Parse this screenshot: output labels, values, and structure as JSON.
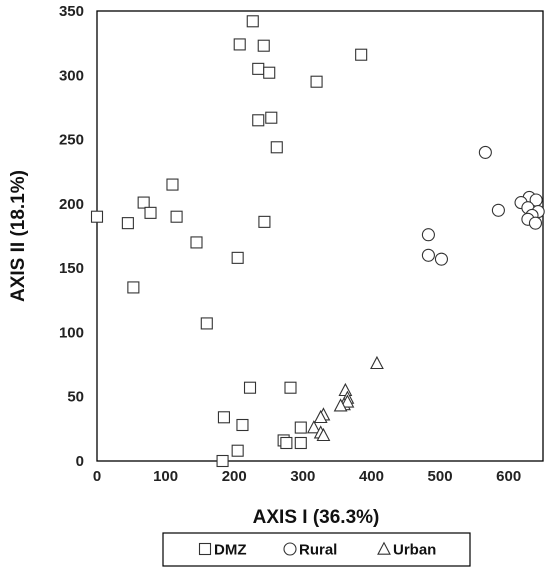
{
  "chart_data": {
    "type": "scatter",
    "xlabel": "AXIS I (36.3%)",
    "ylabel": "AXIS II (18.1%)",
    "xlim": [
      0,
      650
    ],
    "ylim": [
      0,
      350
    ],
    "xticks": [
      0,
      100,
      200,
      300,
      400,
      500,
      600
    ],
    "yticks": [
      0,
      50,
      100,
      150,
      200,
      250,
      300,
      350
    ],
    "grid": false,
    "legend_position": "bottom",
    "series": [
      {
        "name": "DMZ",
        "marker": "square",
        "points": [
          [
            227,
            342
          ],
          [
            208,
            324
          ],
          [
            243,
            323
          ],
          [
            385,
            316
          ],
          [
            235,
            305
          ],
          [
            251,
            302
          ],
          [
            320,
            295
          ],
          [
            254,
            267
          ],
          [
            235,
            265
          ],
          [
            262,
            244
          ],
          [
            110,
            215
          ],
          [
            68,
            201
          ],
          [
            0,
            190
          ],
          [
            78,
            193
          ],
          [
            116,
            190
          ],
          [
            45,
            185
          ],
          [
            244,
            186
          ],
          [
            145,
            170
          ],
          [
            205,
            158
          ],
          [
            53,
            135
          ],
          [
            160,
            107
          ],
          [
            223,
            57
          ],
          [
            282,
            57
          ],
          [
            185,
            34
          ],
          [
            297,
            26
          ],
          [
            212,
            28
          ],
          [
            205,
            8
          ],
          [
            272,
            16
          ],
          [
            297,
            14
          ],
          [
            276,
            14
          ],
          [
            183,
            0
          ]
        ]
      },
      {
        "name": "Rural",
        "marker": "circle",
        "points": [
          [
            566,
            240
          ],
          [
            630,
            205
          ],
          [
            640,
            203
          ],
          [
            618,
            201
          ],
          [
            628,
            197
          ],
          [
            643,
            194
          ],
          [
            585,
            195
          ],
          [
            634,
            191
          ],
          [
            628,
            188
          ],
          [
            639,
            185
          ],
          [
            483,
            176
          ],
          [
            483,
            160
          ],
          [
            502,
            157
          ]
        ]
      },
      {
        "name": "Urban",
        "marker": "triangle",
        "points": [
          [
            408,
            76
          ],
          [
            362,
            55
          ],
          [
            365,
            49
          ],
          [
            360,
            44
          ],
          [
            365,
            46
          ],
          [
            355,
            43
          ],
          [
            330,
            36
          ],
          [
            326,
            34
          ],
          [
            316,
            26
          ],
          [
            326,
            22
          ],
          [
            330,
            20
          ]
        ]
      }
    ]
  }
}
